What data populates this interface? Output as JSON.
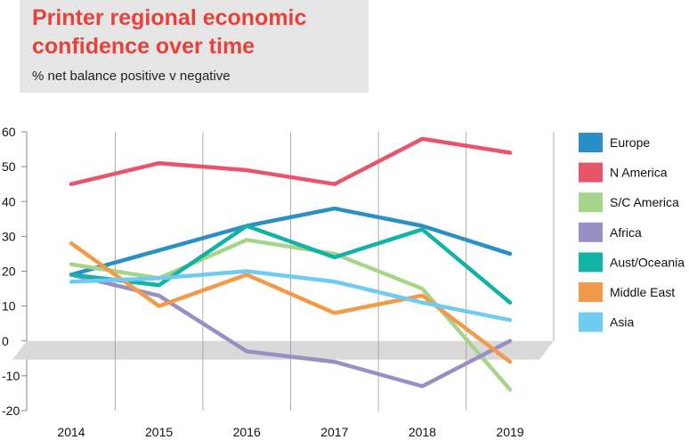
{
  "chart_data": {
    "type": "line",
    "title": "Printer regional economic confidence over time",
    "subtitle": "% net balance positive v negative",
    "x": [
      "2014",
      "2015",
      "2016",
      "2017",
      "2018",
      "2019"
    ],
    "ylim": [
      -20,
      60
    ],
    "yticks": [
      "60",
      "50",
      "40",
      "30",
      "20",
      "10",
      "0",
      "-10",
      "-20"
    ],
    "legend_position": "right",
    "series": [
      {
        "name": "Europe",
        "color": "#2b8fc7",
        "values": [
          19,
          26,
          33,
          38,
          33,
          25
        ]
      },
      {
        "name": "N America",
        "color": "#e8556a",
        "values": [
          45,
          51,
          49,
          45,
          58,
          54
        ]
      },
      {
        "name": "S/C America",
        "color": "#a6d48a",
        "values": [
          22,
          18,
          29,
          25,
          15,
          -14
        ]
      },
      {
        "name": "Africa",
        "color": "#9b8ec4",
        "values": [
          19,
          13,
          -3,
          -6,
          -13,
          0
        ]
      },
      {
        "name": "Aust/Oceania",
        "color": "#12b2a6",
        "values": [
          19,
          16,
          33,
          24,
          32,
          11
        ]
      },
      {
        "name": "Middle East",
        "color": "#f39a4a",
        "values": [
          28,
          10,
          19,
          8,
          13,
          -6
        ]
      },
      {
        "name": "Asia",
        "color": "#6fcbef",
        "values": [
          17,
          18,
          20,
          17,
          11,
          6
        ]
      }
    ]
  }
}
